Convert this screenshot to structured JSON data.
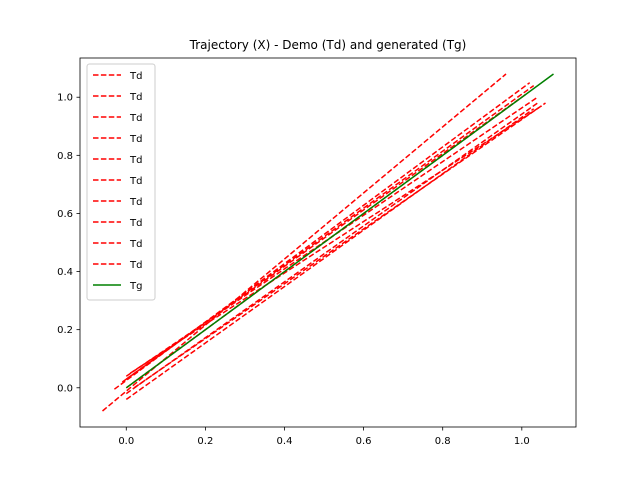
{
  "chart_data": {
    "type": "line",
    "title": "Trajectory (X) - Demo (Td) and generated (Tg)",
    "xlabel": "",
    "ylabel": "",
    "xlim": [
      -0.117,
      1.137
    ],
    "ylim": [
      -0.135,
      1.135
    ],
    "xticks": [
      0.0,
      0.2,
      0.4,
      0.6,
      0.8,
      1.0
    ],
    "xtick_labels": [
      "0.0",
      "0.2",
      "0.4",
      "0.6",
      "0.8",
      "1.0"
    ],
    "yticks": [
      0.0,
      0.2,
      0.4,
      0.6,
      0.8,
      1.0
    ],
    "ytick_labels": [
      "0.0",
      "0.2",
      "0.4",
      "0.6",
      "0.8",
      "1.0"
    ],
    "grid": false,
    "legend_position": "top-left",
    "colors": {
      "demo": "#ff0000",
      "generated": "#008000"
    },
    "series": [
      {
        "name": "Td",
        "style": "dashed",
        "color": "#ff0000",
        "x": [
          -0.06,
          0.96
        ],
        "y": [
          -0.08,
          1.08
        ]
      },
      {
        "name": "Td",
        "style": "dashed",
        "color": "#ff0000",
        "x": [
          -0.03,
          1.02
        ],
        "y": [
          -0.005,
          1.05
        ]
      },
      {
        "name": "Td",
        "style": "dashed",
        "color": "#ff0000",
        "x": [
          0.0,
          1.03
        ],
        "y": [
          0.03,
          1.04
        ]
      },
      {
        "name": "Td",
        "style": "dashed",
        "color": "#ff0000",
        "x": [
          0.0,
          1.01
        ],
        "y": [
          0.0,
          1.01
        ]
      },
      {
        "name": "Td",
        "style": "dashed",
        "color": "#ff0000",
        "x": [
          -0.01,
          1.0
        ],
        "y": [
          0.02,
          1.0
        ]
      },
      {
        "name": "Td",
        "style": "dashed",
        "color": "#ff0000",
        "x": [
          0.0,
          1.04
        ],
        "y": [
          0.04,
          1.0
        ]
      },
      {
        "name": "Td",
        "style": "dashed",
        "color": "#ff0000",
        "x": [
          0.0,
          1.04
        ],
        "y": [
          -0.02,
          0.98
        ]
      },
      {
        "name": "Td",
        "style": "dashed",
        "color": "#ff0000",
        "x": [
          0.01,
          1.05
        ],
        "y": [
          0.05,
          0.97
        ]
      },
      {
        "name": "Td",
        "style": "dashed",
        "color": "#ff0000",
        "x": [
          0.0,
          1.03
        ],
        "y": [
          -0.04,
          0.96
        ]
      },
      {
        "name": "Td",
        "style": "dashed",
        "color": "#ff0000",
        "x": [
          0.02,
          1.06
        ],
        "y": [
          0.0,
          0.98
        ]
      },
      {
        "name": "Tg",
        "style": "solid",
        "color": "#008000",
        "x": [
          0.0,
          1.08
        ],
        "y": [
          0.0,
          1.08
        ]
      }
    ]
  }
}
